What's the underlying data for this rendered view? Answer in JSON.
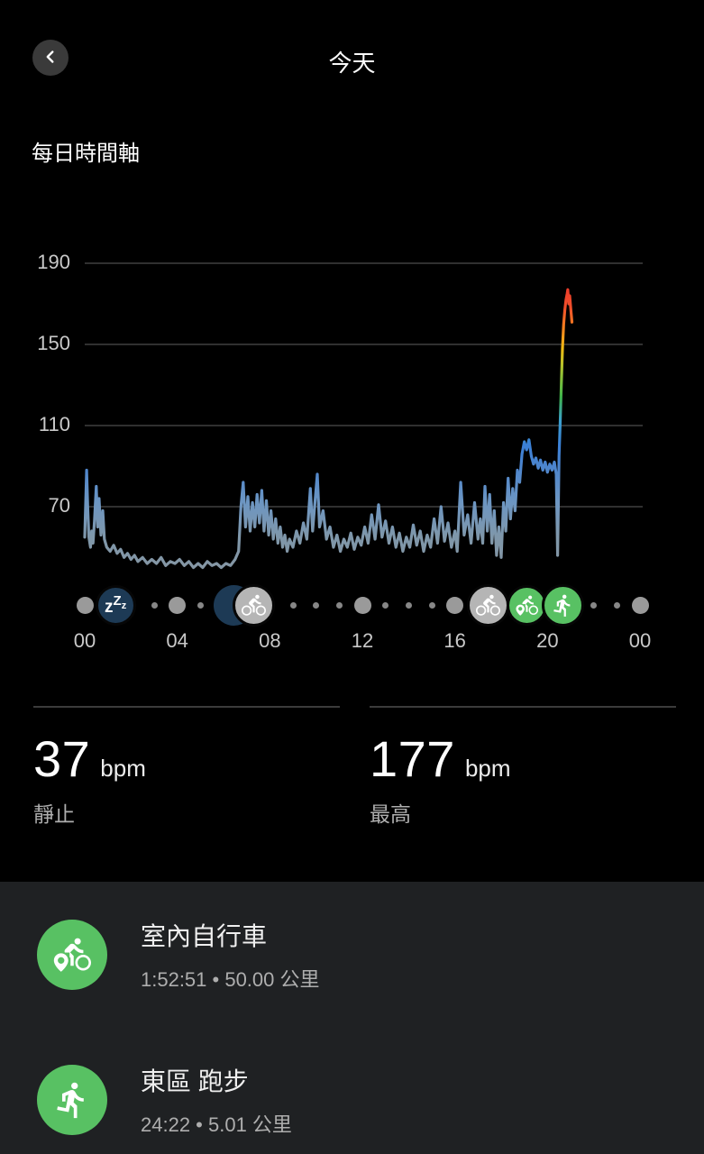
{
  "header": {
    "title": "今天"
  },
  "section_title": "每日時間軸",
  "chart_data": {
    "type": "line",
    "title": "每日時間軸",
    "ylabel": "bpm",
    "y_ticks": [
      "190",
      "150",
      "110",
      "70"
    ],
    "y_tick_values": [
      190,
      150,
      110,
      70
    ],
    "ylim": [
      40,
      200
    ],
    "x_ticks": [
      "00",
      "04",
      "08",
      "12",
      "16",
      "20",
      "00"
    ],
    "x_tick_hours": [
      0,
      4,
      8,
      12,
      16,
      20,
      24
    ],
    "xlim_hours": [
      0,
      24
    ],
    "grid": "horizontal",
    "resting_bpm": 37,
    "max_bpm": 177,
    "line_gradient_by_bpm": [
      [
        178,
        "#ee3b2a"
      ],
      [
        168,
        "#ef4f2b"
      ],
      [
        158,
        "#f4821f"
      ],
      [
        148,
        "#f0bb14"
      ],
      [
        136,
        "#9cc434"
      ],
      [
        124,
        "#3eb44b"
      ],
      [
        112,
        "#3b9fd0"
      ],
      [
        100,
        "#3b7fd6"
      ],
      [
        88,
        "#4f86cc"
      ],
      [
        72,
        "#6d96c2"
      ],
      [
        55,
        "#7f97aa"
      ],
      [
        40,
        "#8496a4"
      ]
    ],
    "series": [
      {
        "name": "heart_rate_bpm",
        "points": [
          [
            0,
            55
          ],
          [
            0.08,
            88
          ],
          [
            0.13,
            70
          ],
          [
            0.18,
            55
          ],
          [
            0.25,
            50
          ],
          [
            0.3,
            58
          ],
          [
            0.36,
            52
          ],
          [
            0.42,
            63
          ],
          [
            0.5,
            80
          ],
          [
            0.56,
            60
          ],
          [
            0.62,
            74
          ],
          [
            0.7,
            56
          ],
          [
            0.78,
            68
          ],
          [
            0.85,
            54
          ],
          [
            0.95,
            50
          ],
          [
            1.1,
            48
          ],
          [
            1.25,
            51
          ],
          [
            1.4,
            47
          ],
          [
            1.55,
            49
          ],
          [
            1.7,
            45
          ],
          [
            1.85,
            47
          ],
          [
            2,
            44
          ],
          [
            2.15,
            46
          ],
          [
            2.3,
            43
          ],
          [
            2.5,
            45
          ],
          [
            2.7,
            42
          ],
          [
            2.9,
            44
          ],
          [
            3.1,
            42
          ],
          [
            3.3,
            45
          ],
          [
            3.5,
            41
          ],
          [
            3.7,
            43
          ],
          [
            3.9,
            42
          ],
          [
            4.1,
            44
          ],
          [
            4.3,
            41
          ],
          [
            4.5,
            43
          ],
          [
            4.7,
            40
          ],
          [
            4.9,
            42
          ],
          [
            5.1,
            40
          ],
          [
            5.3,
            43
          ],
          [
            5.5,
            41
          ],
          [
            5.7,
            42
          ],
          [
            5.9,
            40
          ],
          [
            6.1,
            42
          ],
          [
            6.3,
            41
          ],
          [
            6.5,
            44
          ],
          [
            6.65,
            48
          ],
          [
            6.75,
            70
          ],
          [
            6.85,
            82
          ],
          [
            6.95,
            60
          ],
          [
            7.05,
            75
          ],
          [
            7.15,
            58
          ],
          [
            7.25,
            72
          ],
          [
            7.35,
            60
          ],
          [
            7.45,
            76
          ],
          [
            7.55,
            62
          ],
          [
            7.65,
            78
          ],
          [
            7.75,
            58
          ],
          [
            7.85,
            73
          ],
          [
            7.95,
            56
          ],
          [
            8.05,
            68
          ],
          [
            8.15,
            54
          ],
          [
            8.25,
            64
          ],
          [
            8.35,
            52
          ],
          [
            8.45,
            60
          ],
          [
            8.55,
            50
          ],
          [
            8.65,
            56
          ],
          [
            8.75,
            48
          ],
          [
            8.85,
            54
          ],
          [
            9,
            50
          ],
          [
            9.15,
            58
          ],
          [
            9.3,
            52
          ],
          [
            9.45,
            62
          ],
          [
            9.6,
            54
          ],
          [
            9.75,
            79
          ],
          [
            9.85,
            58
          ],
          [
            10.05,
            86
          ],
          [
            10.15,
            60
          ],
          [
            10.3,
            68
          ],
          [
            10.45,
            54
          ],
          [
            10.6,
            60
          ],
          [
            10.75,
            50
          ],
          [
            10.9,
            56
          ],
          [
            11.05,
            48
          ],
          [
            11.2,
            54
          ],
          [
            11.35,
            50
          ],
          [
            11.5,
            57
          ],
          [
            11.65,
            49
          ],
          [
            11.8,
            55
          ],
          [
            11.95,
            51
          ],
          [
            12.1,
            60
          ],
          [
            12.25,
            52
          ],
          [
            12.4,
            66
          ],
          [
            12.55,
            54
          ],
          [
            12.7,
            71
          ],
          [
            12.85,
            55
          ],
          [
            13,
            63
          ],
          [
            13.15,
            52
          ],
          [
            13.3,
            60
          ],
          [
            13.45,
            50
          ],
          [
            13.6,
            57
          ],
          [
            13.75,
            48
          ],
          [
            13.9,
            55
          ],
          [
            14.05,
            50
          ],
          [
            14.2,
            61
          ],
          [
            14.35,
            51
          ],
          [
            14.5,
            58
          ],
          [
            14.65,
            48
          ],
          [
            14.8,
            56
          ],
          [
            14.95,
            50
          ],
          [
            15.1,
            64
          ],
          [
            15.25,
            52
          ],
          [
            15.4,
            70
          ],
          [
            15.55,
            53
          ],
          [
            15.7,
            62
          ],
          [
            15.85,
            50
          ],
          [
            16,
            58
          ],
          [
            16.1,
            48
          ],
          [
            16.25,
            82
          ],
          [
            16.4,
            56
          ],
          [
            16.55,
            66
          ],
          [
            16.7,
            52
          ],
          [
            16.85,
            72
          ],
          [
            17,
            54
          ],
          [
            17.1,
            64
          ],
          [
            17.2,
            52
          ],
          [
            17.3,
            80
          ],
          [
            17.4,
            58
          ],
          [
            17.5,
            76
          ],
          [
            17.6,
            52
          ],
          [
            17.7,
            68
          ],
          [
            17.8,
            46
          ],
          [
            17.9,
            60
          ],
          [
            18,
            45
          ],
          [
            18.1,
            72
          ],
          [
            18.2,
            58
          ],
          [
            18.3,
            84
          ],
          [
            18.4,
            64
          ],
          [
            18.5,
            79
          ],
          [
            18.6,
            68
          ],
          [
            18.7,
            88
          ],
          [
            18.8,
            82
          ],
          [
            18.9,
            96
          ],
          [
            19,
            102
          ],
          [
            19.1,
            98
          ],
          [
            19.2,
            103
          ],
          [
            19.3,
            95
          ],
          [
            19.4,
            91
          ],
          [
            19.5,
            94
          ],
          [
            19.6,
            89
          ],
          [
            19.7,
            93
          ],
          [
            19.8,
            88
          ],
          [
            19.9,
            92
          ],
          [
            20,
            87
          ],
          [
            20.1,
            91
          ],
          [
            20.2,
            88
          ],
          [
            20.3,
            92
          ],
          [
            20.38,
            86
          ],
          [
            20.44,
            46
          ],
          [
            20.5,
            95
          ],
          [
            20.55,
            112
          ],
          [
            20.6,
            130
          ],
          [
            20.65,
            148
          ],
          [
            20.7,
            160
          ],
          [
            20.75,
            167
          ],
          [
            20.8,
            172
          ],
          [
            20.85,
            175
          ],
          [
            20.88,
            177
          ],
          [
            20.92,
            170
          ],
          [
            20.96,
            174
          ],
          [
            21.02,
            166
          ],
          [
            21.06,
            161
          ]
        ]
      }
    ],
    "timeline_markers": [
      {
        "type": "dot-medium",
        "hour": 0
      },
      {
        "type": "sleep",
        "hour": 1.33,
        "icon": "sleep-icon",
        "label": "zZz"
      },
      {
        "type": "dot-tiny",
        "hour": 3
      },
      {
        "type": "dot-medium",
        "hour": 4
      },
      {
        "type": "dot-tiny",
        "hour": 5
      },
      {
        "type": "sleep-under",
        "hour": 6.45,
        "icon": "sleep-end-marker"
      },
      {
        "type": "cycling-gray",
        "hour": 7.3,
        "icon": "cycling-icon"
      },
      {
        "type": "dot-tiny",
        "hour": 9
      },
      {
        "type": "dot-tiny",
        "hour": 10
      },
      {
        "type": "dot-tiny",
        "hour": 11
      },
      {
        "type": "dot-medium",
        "hour": 12
      },
      {
        "type": "dot-tiny",
        "hour": 13
      },
      {
        "type": "dot-tiny",
        "hour": 14
      },
      {
        "type": "dot-tiny",
        "hour": 15
      },
      {
        "type": "dot-medium",
        "hour": 16
      },
      {
        "type": "cycling-gray",
        "hour": 17.45,
        "icon": "cycling-icon"
      },
      {
        "type": "cycling-green",
        "hour": 19.1,
        "icon": "indoor-cycling-icon"
      },
      {
        "type": "running-green",
        "hour": 20.65,
        "icon": "running-icon"
      },
      {
        "type": "dot-tiny",
        "hour": 22
      },
      {
        "type": "dot-tiny",
        "hour": 23
      },
      {
        "type": "dot-medium",
        "hour": 24
      }
    ]
  },
  "stats": {
    "resting": {
      "value": "37",
      "unit": "bpm",
      "label": "靜止"
    },
    "max": {
      "value": "177",
      "unit": "bpm",
      "label": "最高"
    }
  },
  "activities": [
    {
      "icon": "indoor-cycling-icon",
      "icon_color": "#58c163",
      "title": "室內自行車",
      "subtitle": "1:52:51 • 50.00 公里"
    },
    {
      "icon": "running-icon",
      "icon_color": "#58c163",
      "title": "東區 跑步",
      "subtitle": "24:22 • 5.01 公里"
    }
  ],
  "colors": {
    "background": "#000000",
    "card_background": "#1f2123",
    "gridline": "#404040",
    "tick_text": "#c9c9c9",
    "accent_green": "#58c163",
    "sleep_navy": "#1d3a55",
    "activity_gray": "#b5b5b5"
  }
}
